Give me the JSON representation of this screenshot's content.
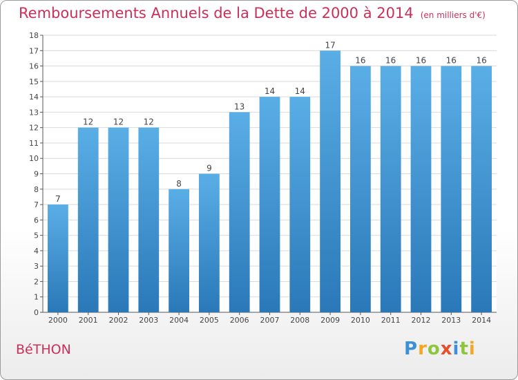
{
  "header": {
    "title": "Remboursements Annuels de la Dette de 2000 à 2014",
    "subtitle": "(en milliers d'€)"
  },
  "commune": "BéTHON",
  "logo": {
    "text": "Proxiti"
  },
  "colors": {
    "accent": "#c8305a",
    "bar_top": "#5aaee6",
    "bar_bottom": "#2a78b8",
    "grid": "#d9d9d9"
  },
  "chart_data": {
    "type": "bar",
    "categories": [
      "2000",
      "2001",
      "2002",
      "2003",
      "2004",
      "2005",
      "2006",
      "2007",
      "2008",
      "2009",
      "2010",
      "2011",
      "2012",
      "2013",
      "2014"
    ],
    "values": [
      7,
      12,
      12,
      12,
      8,
      9,
      13,
      14,
      14,
      17,
      16,
      16,
      16,
      16,
      16
    ],
    "data_labels": [
      "7",
      "12",
      "12",
      "12",
      "8",
      "9",
      "13",
      "14",
      "14",
      "17",
      "16",
      "16",
      "16",
      "16",
      "16"
    ],
    "yticks": [
      "0",
      "1",
      "2",
      "3",
      "4",
      "5",
      "6",
      "7",
      "8",
      "9",
      "10",
      "11",
      "12",
      "13",
      "14",
      "15",
      "16",
      "17",
      "18"
    ],
    "title": "Remboursements Annuels de la Dette de 2000 à 2014",
    "xlabel": "",
    "ylabel": "",
    "ylim": [
      0,
      18
    ],
    "grid": true,
    "legend": "none"
  }
}
